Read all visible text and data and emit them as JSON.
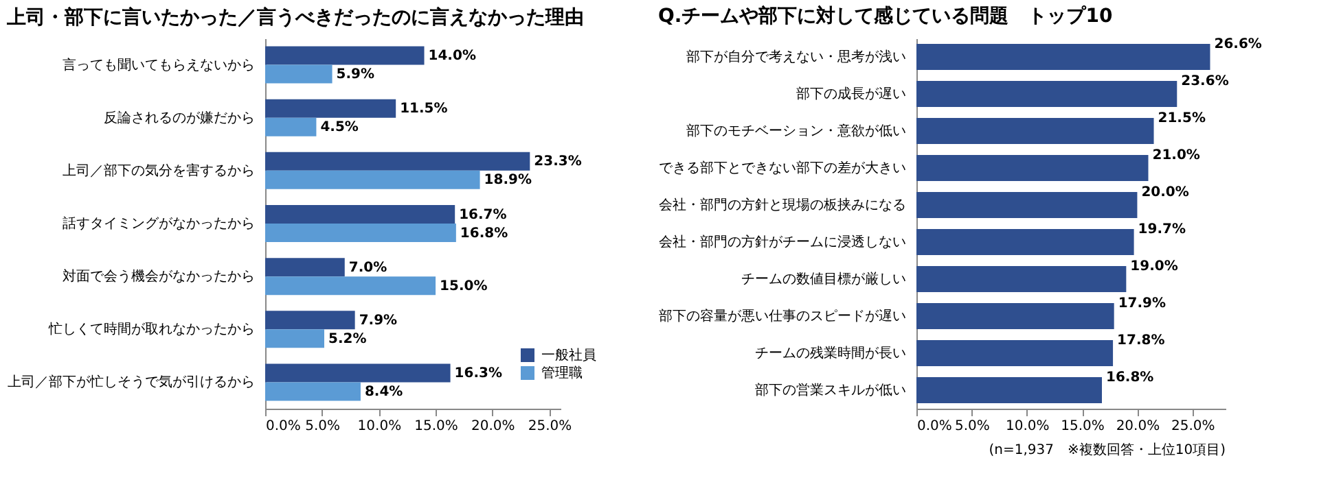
{
  "chart_data": [
    {
      "type": "bar",
      "orientation": "horizontal",
      "title": "上司・部下に言いたかった／言うべきだったのに言えなかった理由",
      "categories": [
        "言っても聞いてもらえないから",
        "反論されるのが嫌だから",
        "上司／部下の気分を害するから",
        "話すタイミングがなかったから",
        "対面で会う機会がなかったから",
        "忙しくて時間が取れなかったから",
        "上司／部下が忙しそうで気が引けるから"
      ],
      "series": [
        {
          "name": "一般社員",
          "color": "#2f4f8f",
          "values": [
            14.0,
            11.5,
            23.3,
            16.7,
            7.0,
            7.9,
            16.3
          ],
          "value_labels": [
            "14.0%",
            "11.5%",
            "23.3%",
            "16.7%",
            "7.0%",
            "7.9%",
            "16.3%"
          ]
        },
        {
          "name": "管理職",
          "color": "#5b9bd5",
          "values": [
            5.9,
            4.5,
            18.9,
            16.8,
            15.0,
            5.2,
            8.4
          ],
          "value_labels": [
            "5.9%",
            "4.5%",
            "18.9%",
            "16.8%",
            "15.0%",
            "5.2%",
            "8.4%"
          ]
        }
      ],
      "xlim": [
        0,
        26
      ],
      "xticks": [
        {
          "value": 0,
          "label": "0.0%"
        },
        {
          "value": 5,
          "label": "5.0%"
        },
        {
          "value": 10,
          "label": "10.0%"
        },
        {
          "value": 15,
          "label": "15.0%"
        },
        {
          "value": 20,
          "label": "20.0%"
        },
        {
          "value": 25,
          "label": "25.0%"
        }
      ],
      "grid": false,
      "legend": "bottom right"
    },
    {
      "type": "bar",
      "orientation": "horizontal",
      "title": "Q.チームや部下に対して感じている問題　トップ10",
      "categories": [
        "部下が自分で考えない・思考が浅い",
        "部下の成長が遅い",
        "部下のモチベーション・意欲が低い",
        "できる部下とできない部下の差が大きい",
        "会社・部門の方針と現場の板挟みになる",
        "会社・部門の方針がチームに浸透しない",
        "チームの数値目標が厳しい",
        "部下の容量が悪い仕事のスピードが遅い",
        "チームの残業時間が長い",
        "部下の営業スキルが低い"
      ],
      "series": [
        {
          "color": "#2f4f8f",
          "values": [
            26.6,
            23.6,
            21.5,
            21.0,
            20.0,
            19.7,
            19.0,
            17.9,
            17.8,
            16.8
          ],
          "value_labels": [
            "26.6%",
            "23.6%",
            "21.5%",
            "21.0%",
            "20.0%",
            "19.7%",
            "19.0%",
            "17.9%",
            "17.8%",
            "16.8%"
          ]
        }
      ],
      "xlim": [
        0,
        28
      ],
      "xticks": [
        {
          "value": 0,
          "label": "0.0%"
        },
        {
          "value": 5,
          "label": "5.0%"
        },
        {
          "value": 10,
          "label": "10.0%"
        },
        {
          "value": 15,
          "label": "15.0%"
        },
        {
          "value": 20,
          "label": "20.0%"
        },
        {
          "value": 25,
          "label": "25.0%"
        }
      ],
      "grid": false,
      "legend": false,
      "annotations": [
        "(n=1,937　※複数回答・上位10項目)"
      ]
    }
  ]
}
